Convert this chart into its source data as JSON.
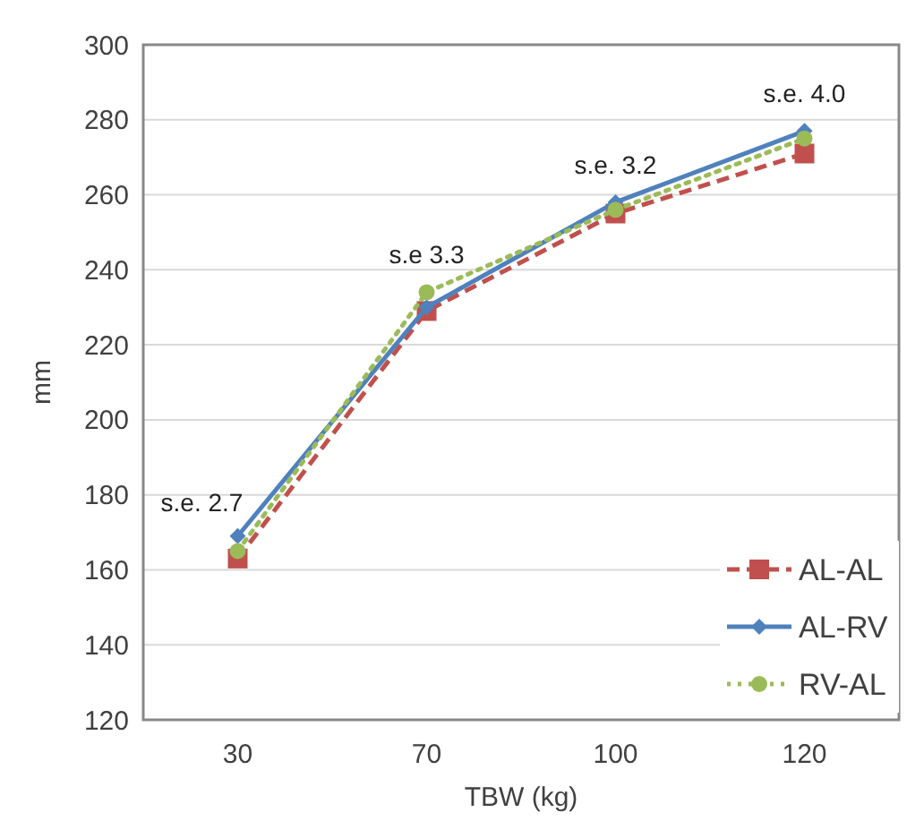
{
  "chart_data": {
    "type": "line",
    "xlabel": "TBW (kg)",
    "ylabel": "mm",
    "categories": [
      "30",
      "70",
      "100",
      "120"
    ],
    "series": [
      {
        "name": "AL-AL",
        "color": "#c0504d",
        "values": [
          163,
          229,
          255,
          271
        ],
        "marker": "square",
        "line_style": "dashed"
      },
      {
        "name": "AL-RV",
        "color": "#4f81bd",
        "values": [
          169,
          230,
          258,
          277
        ],
        "marker": "diamond",
        "line_style": "solid"
      },
      {
        "name": "RV-AL",
        "color": "#9bbb59",
        "values": [
          165,
          234,
          256,
          275
        ],
        "marker": "circle",
        "line_style": "dotted"
      }
    ],
    "ylim": [
      120,
      300
    ],
    "yticks": [
      120,
      140,
      160,
      180,
      200,
      220,
      240,
      260,
      280,
      300
    ],
    "grid": "y",
    "legend": "bottom right",
    "annotations": [
      "s.e. 2.7",
      "s.e 3.3",
      "s.e. 3.2",
      "s.e. 4.0"
    ]
  }
}
